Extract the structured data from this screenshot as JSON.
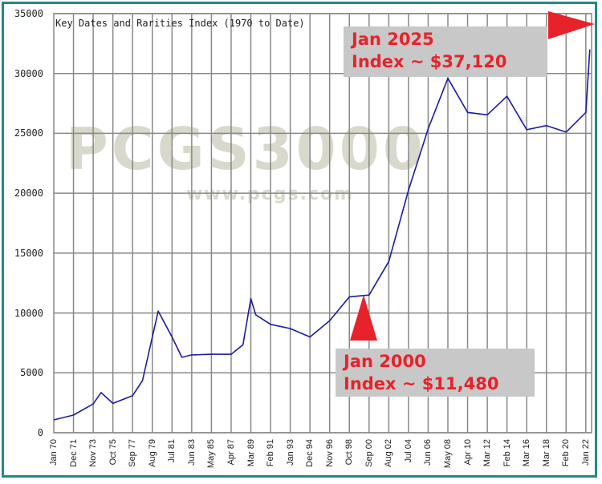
{
  "chart_data": {
    "type": "line",
    "title": "Key Dates and Rarities Index (1970 to Date)",
    "xlabel": "",
    "ylabel": "",
    "ylim": [
      0,
      35000
    ],
    "grid": true,
    "legend": null,
    "y_ticks": [
      "35000",
      "30000",
      "25000",
      "20000",
      "15000",
      "10000",
      "5000",
      "0"
    ],
    "x_ticks": [
      "Jan 70",
      "Dec 71",
      "Nov 73",
      "Oct 75",
      "Sep 77",
      "Aug 79",
      "Jul 81",
      "Jun 83",
      "May 85",
      "Apr 87",
      "Mar 89",
      "Feb 91",
      "Jan 93",
      "Dec 94",
      "Nov 96",
      "Oct 98",
      "Sep 00",
      "Aug 02",
      "Jul 04",
      "Jun 06",
      "May 08",
      "Apr 10",
      "Mar 12",
      "Feb 14",
      "Mar 16",
      "Mar 18",
      "Feb 20",
      "Jan 22"
    ],
    "series": [
      {
        "name": "Key Dates and Rarities Index",
        "color": "#1a1aa8",
        "x": [
          "Jan 70",
          "Dec 71",
          "Nov 73",
          "1974",
          "Oct 75",
          "Sep 77",
          "1978",
          "Aug 79",
          "1980",
          "Jul 81",
          "1982",
          "Jun 83",
          "May 85",
          "Apr 87",
          "1988",
          "Mar 89",
          "1989",
          "Feb 91",
          "Jan 93",
          "Dec 94",
          "Nov 96",
          "Oct 98",
          "Sep 00",
          "Aug 02",
          "Jul 04",
          "Jun 06",
          "May 08",
          "Apr 10",
          "Mar 12",
          "Feb 14",
          "Mar 16",
          "Mar 18",
          "Feb 20",
          "Jan 22",
          "2022 end"
        ],
        "values": [
          1070,
          1470,
          2400,
          3350,
          2450,
          3100,
          4350,
          8000,
          10150,
          8000,
          6300,
          6500,
          6550,
          6550,
          7350,
          11200,
          9850,
          9050,
          8700,
          8000,
          9350,
          11350,
          11500,
          14300,
          20250,
          25400,
          29600,
          26750,
          26550,
          28100,
          25300,
          25650,
          25100,
          26750,
          32000
        ]
      }
    ],
    "annotations": [
      {
        "line1": "Jan 2025",
        "line2": "Index ~ $37,120",
        "marker": "right-pointing red triangle"
      },
      {
        "line1": "Jan 2000",
        "line2": "Index ~ $11,480",
        "marker": "up-pointing red triangle"
      }
    ],
    "watermark": {
      "main": "PCGS3000",
      "sub": "www.pcgs.com",
      "mark": "®"
    }
  },
  "colors": {
    "frame": "#1f8a8a",
    "grid": "#888888",
    "line": "#1a1aa8",
    "annotation_text": "#e8222a",
    "annotation_bg": "#c8c8c8",
    "marker": "#e8222a",
    "watermark": "#d8d8cc"
  }
}
